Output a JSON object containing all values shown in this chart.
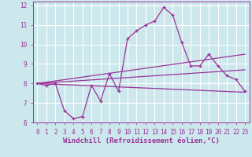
{
  "background_color": "#cce8ec",
  "grid_color": "#ffffff",
  "line_color": "#993399",
  "xlabel": "Windchill (Refroidissement éolien,°C)",
  "xlabel_fontsize": 6.5,
  "tick_fontsize": 5.5,
  "xlim": [
    -0.5,
    23.5
  ],
  "ylim": [
    6,
    12.2
  ],
  "yticks": [
    6,
    7,
    8,
    9,
    10,
    11,
    12
  ],
  "xticks": [
    0,
    1,
    2,
    3,
    4,
    5,
    6,
    7,
    8,
    9,
    10,
    11,
    12,
    13,
    14,
    15,
    16,
    17,
    18,
    19,
    20,
    21,
    22,
    23
  ],
  "jagged_x": [
    0,
    1,
    2,
    3,
    4,
    5,
    6,
    7,
    8,
    9,
    10,
    11,
    12,
    13,
    14,
    15,
    16,
    17,
    18,
    19,
    20,
    21,
    22,
    23
  ],
  "jagged_y": [
    8.0,
    7.9,
    8.0,
    6.6,
    6.2,
    6.3,
    7.9,
    7.1,
    8.5,
    7.6,
    10.3,
    10.7,
    11.0,
    11.2,
    11.9,
    11.5,
    10.1,
    8.9,
    8.9,
    9.5,
    8.9,
    8.4,
    8.2,
    7.6
  ],
  "line1_x": [
    0,
    23
  ],
  "line1_y": [
    8.0,
    9.5
  ],
  "line2_x": [
    0,
    23
  ],
  "line2_y": [
    8.0,
    8.7
  ],
  "line3_x": [
    0,
    23
  ],
  "line3_y": [
    8.0,
    7.55
  ]
}
